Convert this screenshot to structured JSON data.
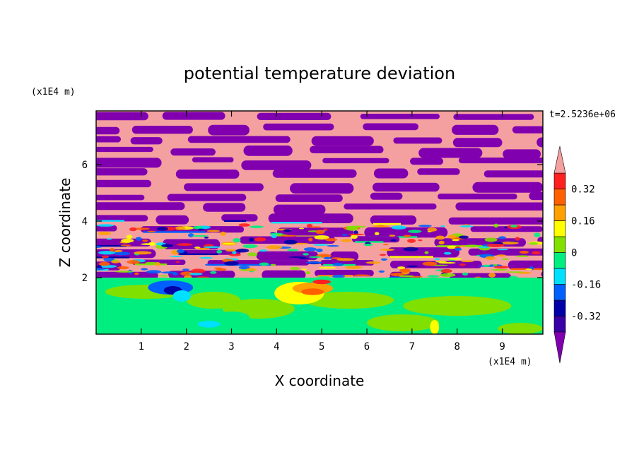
{
  "chart_data": {
    "type": "heatmap",
    "title": "potential temperature deviation",
    "xlabel": "X coordinate",
    "ylabel": "Z coordinate",
    "x_unit": "(x1E4 m)",
    "y_unit": "(x1E4 m)",
    "time_label": "t=2.5236e+06",
    "xlim": [
      0,
      9.9
    ],
    "ylim": [
      0,
      7.9
    ],
    "x_ticks": [
      1,
      2,
      3,
      4,
      5,
      6,
      7,
      8,
      9
    ],
    "y_ticks": [
      2,
      4,
      6
    ],
    "colorbar": {
      "levels": [
        -0.4,
        -0.32,
        -0.24,
        -0.16,
        -0.08,
        0,
        0.08,
        0.16,
        0.24,
        0.32,
        0.4
      ],
      "tick_labels": [
        "0.32",
        "0.16",
        "0",
        "-0.16",
        "-0.32"
      ],
      "tick_values": [
        0.32,
        0.16,
        0,
        -0.16,
        -0.32
      ],
      "colors_low_to_high": [
        "#8000b0",
        "#3a00a8",
        "#0000a8",
        "#0060ff",
        "#00e0ff",
        "#00ee80",
        "#80e000",
        "#ffff00",
        "#ffa000",
        "#ff6000",
        "#ff2020",
        "#f4a0a0"
      ],
      "extend": "both"
    },
    "regions": [
      {
        "name": "upper layered band",
        "zmin": 2.0,
        "zmax": 7.9,
        "dominant_values": [
          "< -0.4",
          "> 0.4"
        ]
      },
      {
        "name": "lower turbulent layer",
        "zmin": 0.0,
        "zmax": 2.0,
        "dominant_values": [
          "0",
          "0.08"
        ]
      }
    ]
  }
}
